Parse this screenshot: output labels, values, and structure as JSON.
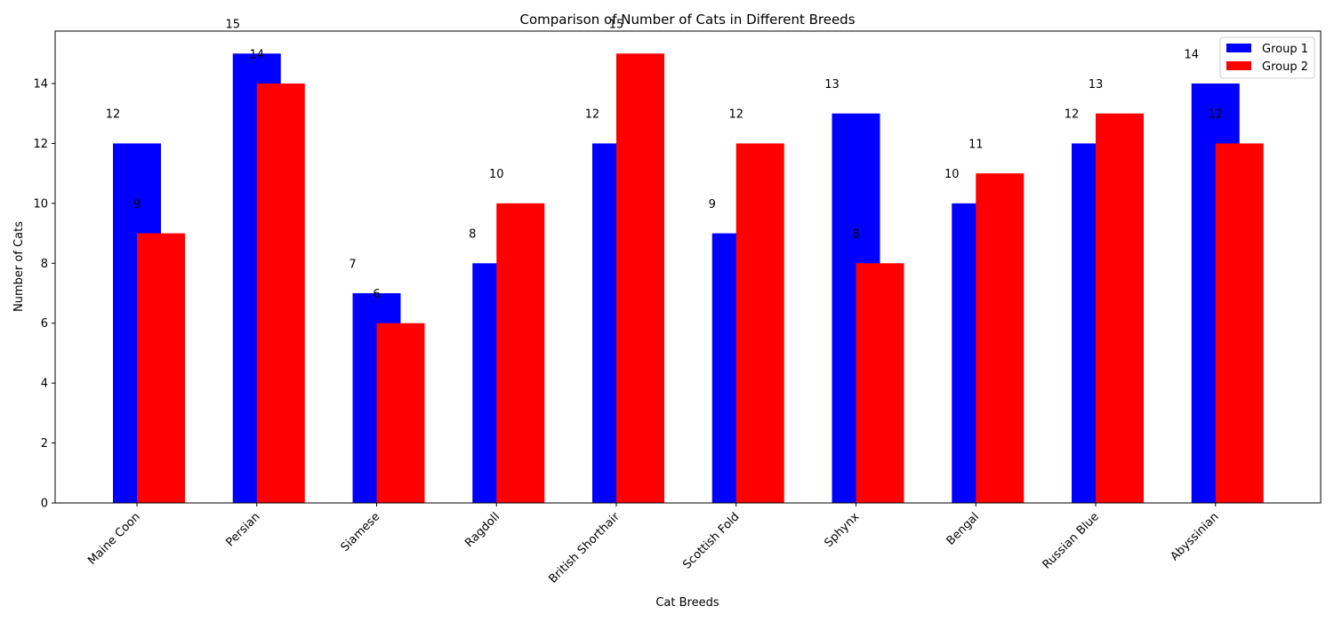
{
  "chart_data": {
    "type": "bar",
    "title": "Comparison of Number of Cats in Different Breeds",
    "xlabel": "Cat Breeds",
    "ylabel": "Number of Cats",
    "categories": [
      "Maine Coon",
      "Persian",
      "Siamese",
      "Ragdoll",
      "British Shorthair",
      "Scottish Fold",
      "Sphynx",
      "Bengal",
      "Russian Blue",
      "Abyssinian"
    ],
    "series": [
      {
        "name": "Group 1",
        "color": "#0000ff",
        "values": [
          12,
          15,
          7,
          8,
          12,
          9,
          13,
          10,
          12,
          14
        ]
      },
      {
        "name": "Group 2",
        "color": "#ff0000",
        "values": [
          9,
          14,
          6,
          10,
          15,
          12,
          8,
          11,
          13,
          12
        ]
      }
    ],
    "ylim": [
      0,
      15.75
    ],
    "yticks": [
      0,
      2,
      4,
      6,
      8,
      10,
      12,
      14
    ],
    "grid": false,
    "legend": "top-right",
    "data_labels": true
  }
}
